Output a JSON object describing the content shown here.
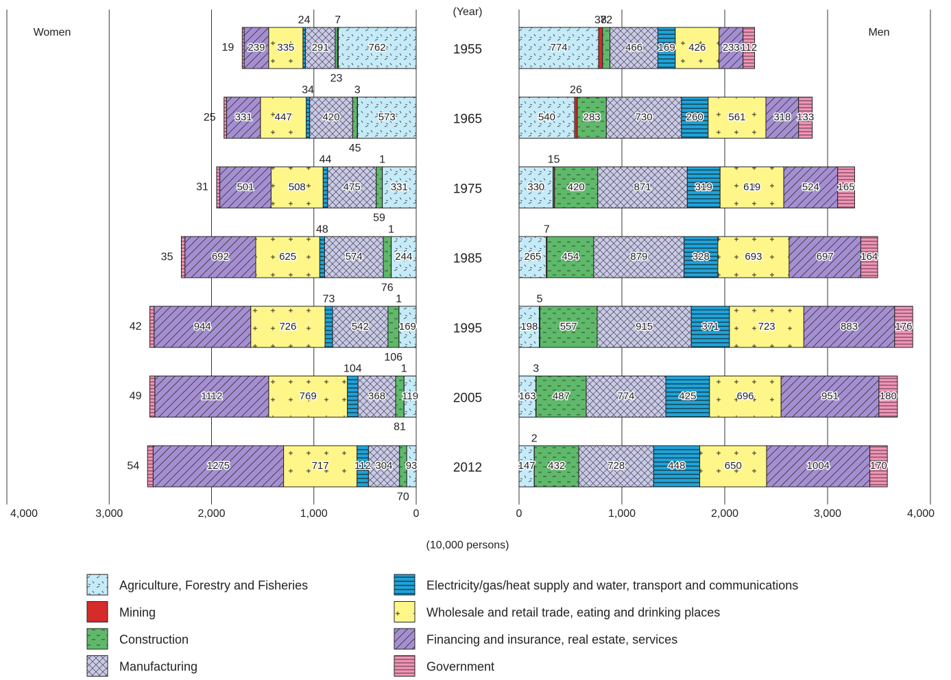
{
  "chart_data": {
    "type": "bar",
    "stacked": true,
    "orientation": "horizontal",
    "categories_label": "(Year)",
    "categories": [
      "1955",
      "1965",
      "1975",
      "1985",
      "1995",
      "2005",
      "2012"
    ],
    "x_label": "(10,000 persons)",
    "panels": [
      {
        "title": "Women",
        "direction": "left",
        "xlim": [
          0,
          4000
        ],
        "xticks": [
          0,
          {
            "value": 1000,
            "label": "1,000"
          },
          {
            "value": 2000,
            "label": "2,000"
          },
          {
            "value": 3000,
            "label": "3,000"
          },
          {
            "value": 4000,
            "label": "4,000"
          }
        ]
      },
      {
        "title": "Men",
        "direction": "right",
        "xlim": [
          0,
          4000
        ],
        "xticks": [
          0,
          {
            "value": 1000,
            "label": "1,000"
          },
          {
            "value": 2000,
            "label": "2,000"
          },
          {
            "value": 3000,
            "label": "3,000"
          },
          {
            "value": 4000,
            "label": "4,000"
          }
        ]
      }
    ],
    "series": [
      {
        "name": "Agriculture, Forestry and Fisheries",
        "color": "#c5eaf8",
        "values": [
          [
            762,
            573,
            331,
            244,
            169,
            119,
            93
          ],
          [
            774,
            540,
            330,
            265,
            198,
            163,
            147
          ]
        ]
      },
      {
        "name": "Mining",
        "color": "#d62b2b",
        "values": [
          [
            7,
            3,
            1,
            1,
            1,
            1,
            null
          ],
          [
            38,
            26,
            15,
            7,
            5,
            3,
            2
          ]
        ]
      },
      {
        "name": "Construction",
        "color": "#5fb96a",
        "values": [
          [
            23,
            45,
            59,
            76,
            106,
            81,
            70
          ],
          [
            72,
            283,
            420,
            454,
            557,
            487,
            432
          ]
        ]
      },
      {
        "name": "Manufacturing",
        "color": "#c9c9e9",
        "values": [
          [
            291,
            420,
            475,
            574,
            542,
            368,
            304
          ],
          [
            466,
            730,
            871,
            879,
            915,
            774,
            728
          ]
        ]
      },
      {
        "name": "Electricity/gas/heat supply and water, transport and communications",
        "color": "#1ea3d9",
        "values": [
          [
            24,
            34,
            44,
            48,
            73,
            104,
            112
          ],
          [
            169,
            260,
            319,
            328,
            371,
            425,
            448
          ]
        ]
      },
      {
        "name": "Wholesale and retail trade, eating and drinking places",
        "color": "#fff68a",
        "values": [
          [
            335,
            447,
            508,
            625,
            726,
            769,
            717
          ],
          [
            426,
            561,
            619,
            693,
            723,
            696,
            650
          ]
        ]
      },
      {
        "name": "Financing and insurance, real estate, services",
        "color": "#a58fd2",
        "values": [
          [
            239,
            331,
            501,
            692,
            944,
            1112,
            1275
          ],
          [
            233,
            318,
            524,
            697,
            883,
            951,
            1004
          ]
        ]
      },
      {
        "name": "Government",
        "color": "#f293b6",
        "values": [
          [
            19,
            25,
            31,
            35,
            42,
            49,
            54
          ],
          [
            112,
            133,
            165,
            164,
            176,
            180,
            170
          ]
        ]
      }
    ]
  }
}
